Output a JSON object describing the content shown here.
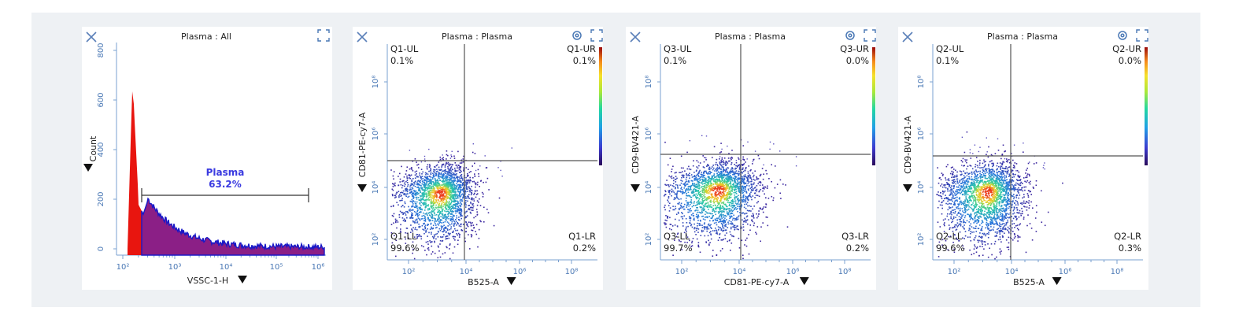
{
  "panels": [
    {
      "kind": "histogram",
      "title": "Plasma : All",
      "xlabel": "VSSC-1-H",
      "ylabel": "Count",
      "xticks": [
        "10²",
        "10³",
        "10⁴",
        "10⁵",
        "10⁶"
      ],
      "yticks": [
        "0",
        "200",
        "400",
        "600",
        "800"
      ],
      "gate": {
        "name": "Plasma",
        "percent": "63.2%"
      }
    },
    {
      "kind": "scatter",
      "title": "Plasma : Plasma",
      "xlabel": "B525-A",
      "ylabel": "CD81-PE-cy7-A",
      "xticks": [
        "10²",
        "10⁴",
        "10⁶",
        "10⁸"
      ],
      "yticks": [
        "10²",
        "10⁴",
        "10⁶",
        "10⁸"
      ],
      "quadrants": {
        "ul_name": "Q1-UL",
        "ul_pct": "0.1%",
        "ur_name": "Q1-UR",
        "ur_pct": "0.1%",
        "ll_name": "Q1-LL",
        "ll_pct": "99.6%",
        "lr_name": "Q1-LR",
        "lr_pct": "0.2%"
      }
    },
    {
      "kind": "scatter",
      "title": "Plasma : Plasma",
      "xlabel": "CD81-PE-cy7-A",
      "ylabel": "CD9-BV421-A",
      "xticks": [
        "10²",
        "10⁴",
        "10⁶",
        "10⁸"
      ],
      "yticks": [
        "10²",
        "10⁴",
        "10⁶",
        "10⁸"
      ],
      "quadrants": {
        "ul_name": "Q3-UL",
        "ul_pct": "0.1%",
        "ur_name": "Q3-UR",
        "ur_pct": "0.0%",
        "ll_name": "Q3-LL",
        "ll_pct": "99.7%",
        "lr_name": "Q3-LR",
        "lr_pct": "0.2%"
      }
    },
    {
      "kind": "scatter",
      "title": "Plasma : Plasma",
      "xlabel": "B525-A",
      "ylabel": "CD9-BV421-A",
      "xticks": [
        "10²",
        "10⁴",
        "10⁶",
        "10⁸"
      ],
      "yticks": [
        "10²",
        "10⁴",
        "10⁶",
        "10⁸"
      ],
      "quadrants": {
        "ul_name": "Q2-UL",
        "ul_pct": "0.1%",
        "ur_name": "Q2-UR",
        "ur_pct": "0.0%",
        "ll_name": "Q2-LL",
        "ll_pct": "99.6%",
        "lr_name": "Q2-LR",
        "lr_pct": "0.3%"
      }
    }
  ],
  "colors": {
    "histogram": "#e8150f",
    "gated_fill": "#8b1f86",
    "gated_edge": "#1818c8",
    "quadrant_line": "#555555",
    "accent": "#4a78b5"
  },
  "icons": {
    "close": "close-icon",
    "settings": "gear-icon",
    "expand": "expand-icon",
    "axis_menu": "triangle-down-icon"
  }
}
